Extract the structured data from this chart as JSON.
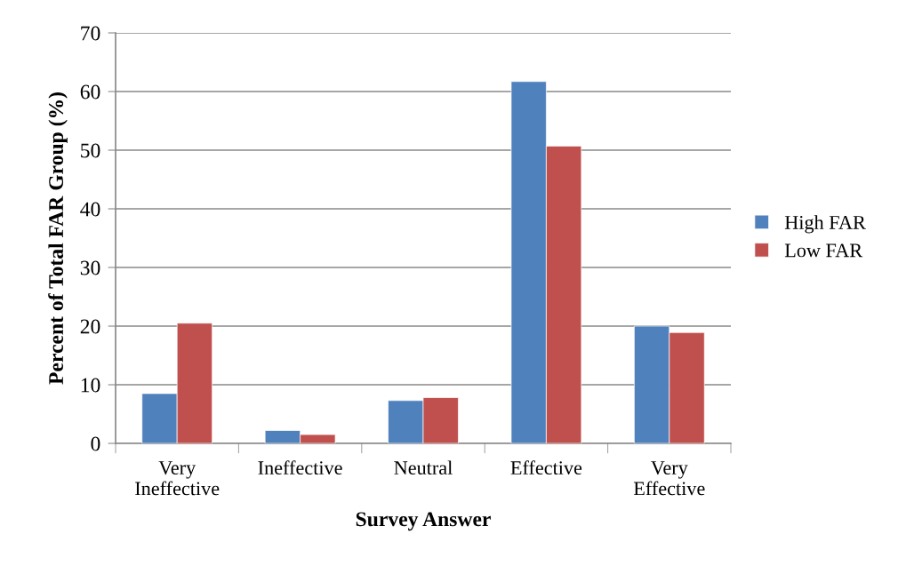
{
  "chart_data": {
    "type": "bar",
    "xlabel": "Survey Answer",
    "ylabel": "Percent of Total FAR Group (%)",
    "categories": [
      "Very\nIneffective",
      "Ineffective",
      "Neutral",
      "Effective",
      "Very\nEffective"
    ],
    "series": [
      {
        "name": "High FAR",
        "color": "#4f81bd",
        "values": [
          8.5,
          2.2,
          7.3,
          61.7,
          20.0
        ]
      },
      {
        "name": "Low FAR",
        "color": "#c0504d",
        "values": [
          20.5,
          1.5,
          7.8,
          50.7,
          18.9
        ]
      }
    ],
    "ylim": [
      0,
      70
    ],
    "yticks": [
      0,
      10,
      20,
      30,
      40,
      50,
      60,
      70
    ],
    "grid": "y",
    "legend": "right"
  }
}
